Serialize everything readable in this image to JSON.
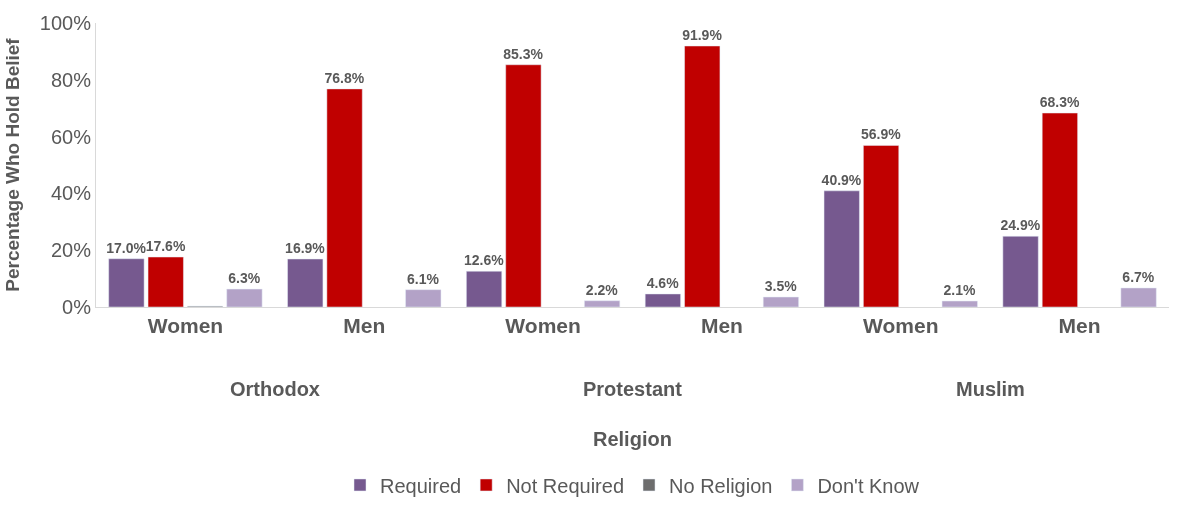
{
  "chart_data": {
    "type": "bar",
    "xlabel": "Religion",
    "ylabel": "Percentage Who Hold Belief",
    "categories": [
      "Women",
      "Men",
      "Women",
      "Men",
      "Women",
      "Men"
    ],
    "annotations": [
      "Orthodox",
      "Protestant",
      "Muslim"
    ],
    "series": [
      {
        "name": "Required",
        "color": "#76598f",
        "values": [
          17.0,
          16.9,
          12.6,
          4.6,
          40.9,
          24.9
        ],
        "value_labels": [
          "17.0%",
          "16.9%",
          "12.6%",
          "4.6%",
          "40.9%",
          "24.9%"
        ]
      },
      {
        "name": "Not Required",
        "color": "#c00000",
        "values": [
          17.6,
          76.8,
          85.3,
          91.9,
          56.9,
          68.3
        ],
        "value_labels": [
          "17.6%",
          "76.8%",
          "85.3%",
          "91.9%",
          "56.9%",
          "68.3%"
        ]
      },
      {
        "name": "No Religion",
        "color": "#6d6d6d",
        "values": [
          0.3,
          null,
          null,
          null,
          null,
          null
        ],
        "value_labels": [
          null,
          null,
          null,
          null,
          null,
          null
        ]
      },
      {
        "name": "Don't Know",
        "color": "#b3a2c7",
        "values": [
          6.3,
          6.1,
          2.2,
          3.5,
          2.1,
          6.7
        ],
        "value_labels": [
          "6.3%",
          "6.1%",
          "2.2%",
          "3.5%",
          "2.1%",
          "6.7%"
        ]
      }
    ],
    "ylim": [
      0,
      100
    ],
    "yticks": [
      {
        "value": 0,
        "label": "0%"
      },
      {
        "value": 20,
        "label": "20%"
      },
      {
        "value": 40,
        "label": "40%"
      },
      {
        "value": 60,
        "label": "60%"
      },
      {
        "value": 80,
        "label": "80%"
      },
      {
        "value": 100,
        "label": "100%"
      }
    ],
    "legend": "bottom"
  }
}
